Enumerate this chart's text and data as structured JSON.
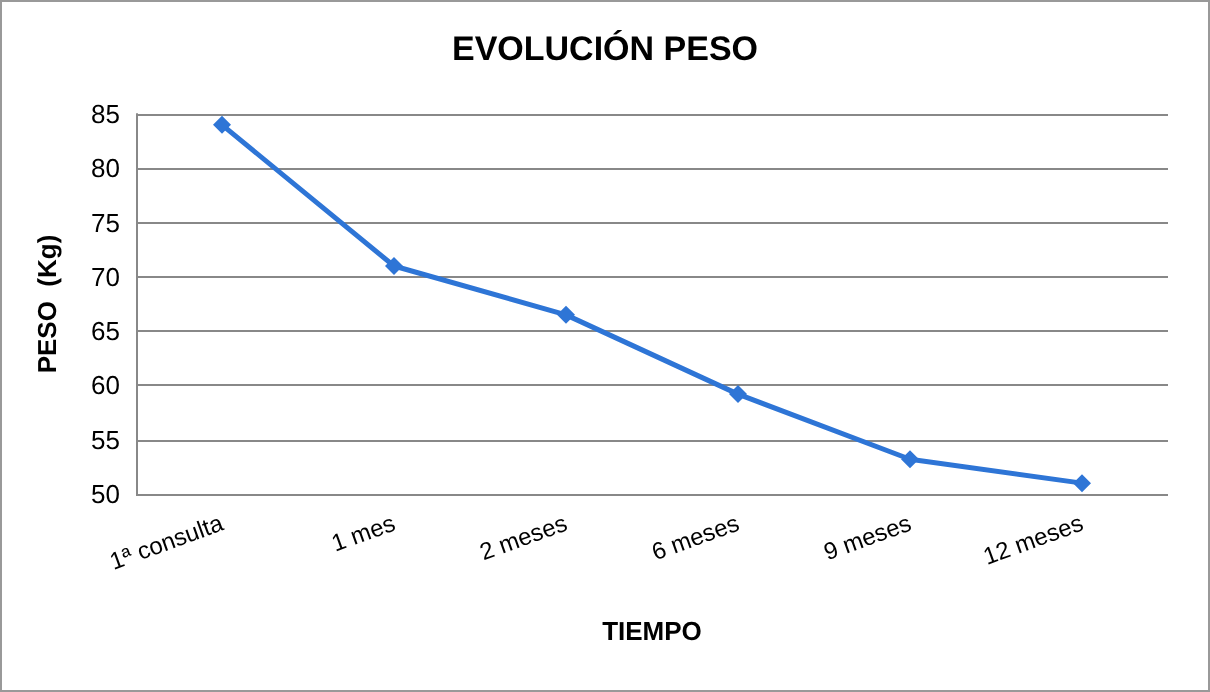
{
  "chart_data": {
    "type": "line",
    "title": "EVOLUCIÓN PESO",
    "xlabel": "TIEMPO",
    "ylabel": "PESO  (Kg)",
    "categories": [
      "1ª consulta",
      "1 mes",
      "2 meses",
      "6 meses",
      "9 meses",
      "12 meses"
    ],
    "series": [
      {
        "color": "#2e75d6",
        "values": [
          84,
          71,
          66.5,
          59.2,
          53.2,
          51
        ]
      }
    ],
    "ylim": [
      50,
      85
    ],
    "yticks": [
      50,
      55,
      60,
      65,
      70,
      75,
      80,
      85
    ],
    "grid": "y",
    "marker": "diamond",
    "line_style": "solid"
  }
}
